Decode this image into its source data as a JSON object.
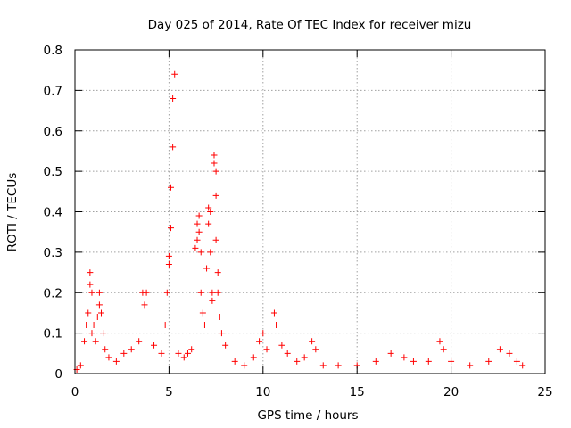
{
  "chart_data": {
    "type": "scatter",
    "title": "Day 025 of 2014, Rate Of TEC Index for receiver mizu",
    "xlabel": "GPS time / hours",
    "ylabel": "ROTI / TECUs",
    "xlim": [
      0,
      25
    ],
    "ylim": [
      0,
      0.8
    ],
    "xticks": [
      0,
      5,
      10,
      15,
      20,
      25
    ],
    "yticks": [
      0,
      0.1,
      0.2,
      0.3,
      0.4,
      0.5,
      0.6,
      0.7,
      0.8
    ],
    "xtick_labels": [
      "0",
      "5",
      "10",
      "15",
      "20",
      "25"
    ],
    "ytick_labels": [
      "0",
      "0.1",
      "0.2",
      "0.3",
      "0.4",
      "0.5",
      "0.6",
      "0.7",
      "0.8"
    ],
    "grid": true,
    "marker": "+",
    "color": "#ff0000",
    "series": [
      {
        "name": "ROTI",
        "points": [
          [
            0.1,
            0.01
          ],
          [
            0.3,
            0.02
          ],
          [
            0.5,
            0.08
          ],
          [
            0.6,
            0.12
          ],
          [
            0.7,
            0.15
          ],
          [
            0.8,
            0.22
          ],
          [
            0.8,
            0.25
          ],
          [
            0.9,
            0.2
          ],
          [
            0.9,
            0.1
          ],
          [
            1.0,
            0.12
          ],
          [
            1.1,
            0.08
          ],
          [
            1.2,
            0.14
          ],
          [
            1.3,
            0.2
          ],
          [
            1.3,
            0.17
          ],
          [
            1.4,
            0.15
          ],
          [
            1.5,
            0.1
          ],
          [
            1.6,
            0.06
          ],
          [
            1.8,
            0.04
          ],
          [
            2.2,
            0.03
          ],
          [
            2.6,
            0.05
          ],
          [
            3.0,
            0.06
          ],
          [
            3.4,
            0.08
          ],
          [
            3.6,
            0.2
          ],
          [
            3.7,
            0.17
          ],
          [
            3.8,
            0.2
          ],
          [
            4.2,
            0.07
          ],
          [
            4.6,
            0.05
          ],
          [
            4.8,
            0.12
          ],
          [
            4.9,
            0.2
          ],
          [
            5.0,
            0.27
          ],
          [
            5.0,
            0.29
          ],
          [
            5.1,
            0.36
          ],
          [
            5.1,
            0.46
          ],
          [
            5.2,
            0.56
          ],
          [
            5.2,
            0.68
          ],
          [
            5.3,
            0.74
          ],
          [
            5.5,
            0.05
          ],
          [
            5.8,
            0.04
          ],
          [
            6.0,
            0.05
          ],
          [
            6.2,
            0.06
          ],
          [
            6.4,
            0.31
          ],
          [
            6.5,
            0.33
          ],
          [
            6.5,
            0.37
          ],
          [
            6.6,
            0.39
          ],
          [
            6.6,
            0.35
          ],
          [
            6.7,
            0.3
          ],
          [
            6.7,
            0.2
          ],
          [
            6.8,
            0.15
          ],
          [
            6.9,
            0.12
          ],
          [
            7.0,
            0.26
          ],
          [
            7.1,
            0.41
          ],
          [
            7.1,
            0.37
          ],
          [
            7.2,
            0.4
          ],
          [
            7.2,
            0.3
          ],
          [
            7.3,
            0.2
          ],
          [
            7.3,
            0.18
          ],
          [
            7.4,
            0.54
          ],
          [
            7.4,
            0.52
          ],
          [
            7.5,
            0.5
          ],
          [
            7.5,
            0.44
          ],
          [
            7.5,
            0.33
          ],
          [
            7.6,
            0.25
          ],
          [
            7.6,
            0.2
          ],
          [
            7.7,
            0.14
          ],
          [
            7.8,
            0.1
          ],
          [
            8.0,
            0.07
          ],
          [
            8.5,
            0.03
          ],
          [
            9.0,
            0.02
          ],
          [
            9.5,
            0.04
          ],
          [
            9.8,
            0.08
          ],
          [
            10.0,
            0.1
          ],
          [
            10.2,
            0.06
          ],
          [
            10.6,
            0.15
          ],
          [
            10.7,
            0.12
          ],
          [
            11.0,
            0.07
          ],
          [
            11.3,
            0.05
          ],
          [
            11.8,
            0.03
          ],
          [
            12.2,
            0.04
          ],
          [
            12.6,
            0.08
          ],
          [
            12.8,
            0.06
          ],
          [
            13.2,
            0.02
          ],
          [
            14.0,
            0.02
          ],
          [
            15.0,
            0.02
          ],
          [
            16.0,
            0.03
          ],
          [
            16.8,
            0.05
          ],
          [
            17.5,
            0.04
          ],
          [
            18.0,
            0.03
          ],
          [
            18.8,
            0.03
          ],
          [
            19.4,
            0.08
          ],
          [
            19.6,
            0.06
          ],
          [
            20.0,
            0.03
          ],
          [
            21.0,
            0.02
          ],
          [
            22.0,
            0.03
          ],
          [
            22.6,
            0.06
          ],
          [
            23.1,
            0.05
          ],
          [
            23.5,
            0.03
          ],
          [
            23.8,
            0.02
          ]
        ]
      }
    ]
  }
}
